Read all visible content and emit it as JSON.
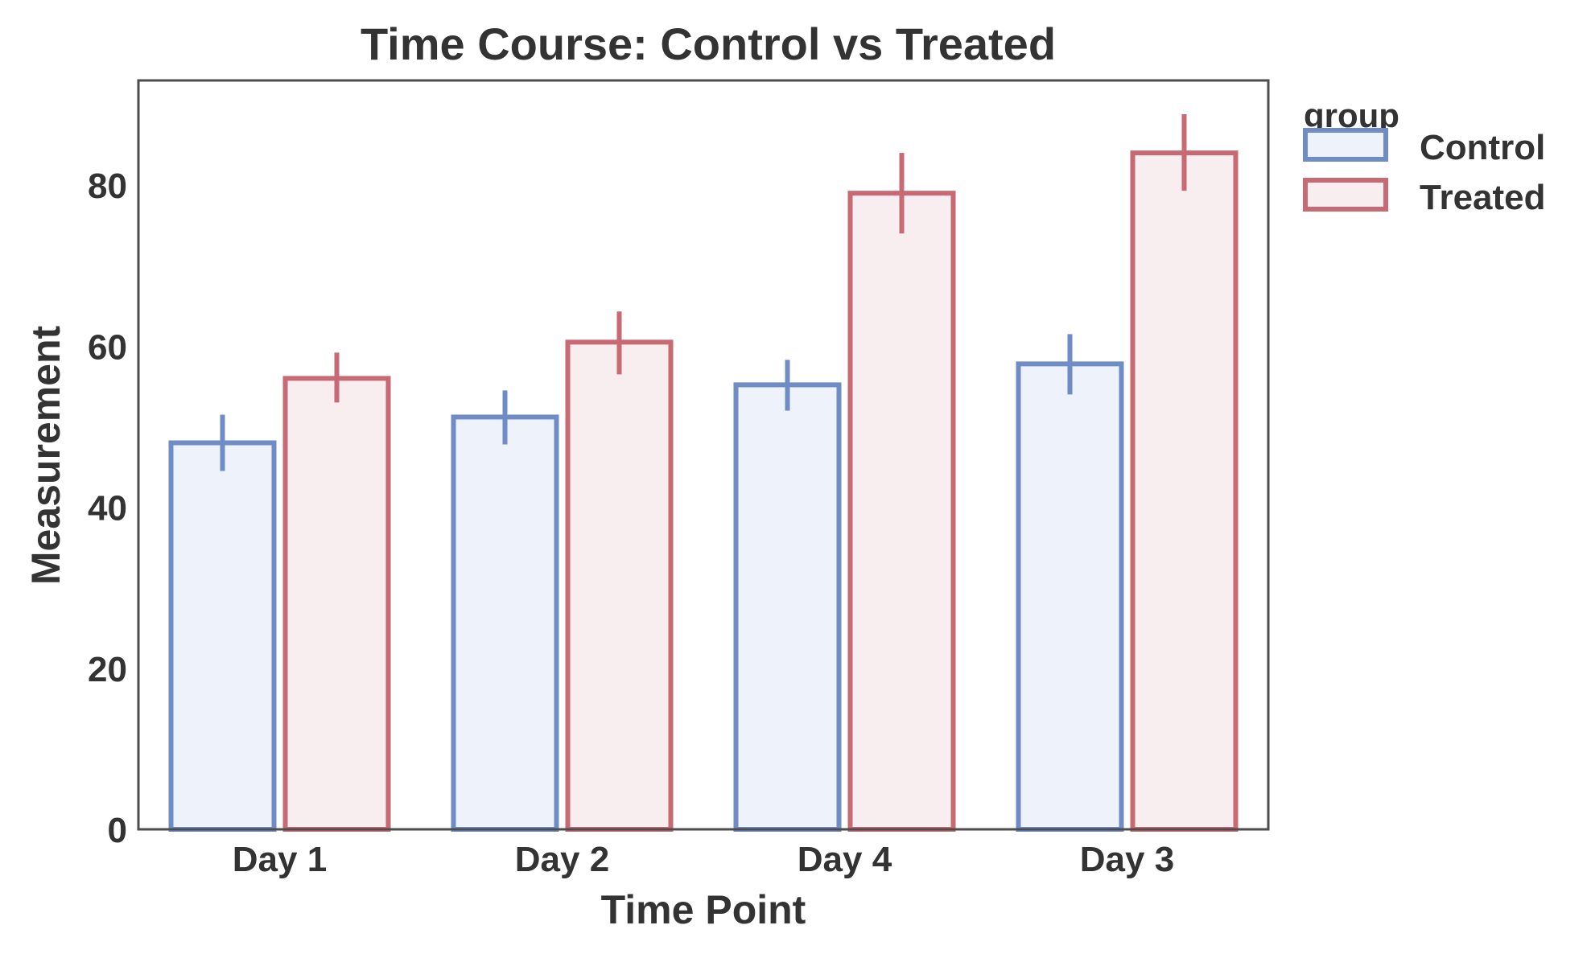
{
  "chart_data": {
    "type": "bar",
    "title": "Time Course: Control vs Treated",
    "xlabel": "Time Point",
    "ylabel": "Measurement",
    "categories": [
      "Day 1",
      "Day 2",
      "Day 4",
      "Day 3"
    ],
    "ylim": [
      0,
      93
    ],
    "yticks": [
      0,
      20,
      40,
      60,
      80
    ],
    "grid": false,
    "legend": {
      "title": "group",
      "placement": "right outside"
    },
    "series": [
      {
        "name": "Control",
        "values": [
          48,
          51.2,
          55.2,
          57.8
        ],
        "error_low": [
          44.5,
          47.8,
          52.0,
          54.0
        ],
        "error_high": [
          51.5,
          54.5,
          58.3,
          61.5
        ],
        "edge_color": "#6F8CC6",
        "fill_color": "#EEF2FA"
      },
      {
        "name": "Treated",
        "values": [
          56,
          60.5,
          79,
          84
        ],
        "error_low": [
          53.0,
          56.5,
          74.0,
          79.3
        ],
        "error_high": [
          59.2,
          64.3,
          84.0,
          88.8
        ],
        "edge_color": "#C86A73",
        "fill_color": "#F9EEEF"
      }
    ]
  }
}
